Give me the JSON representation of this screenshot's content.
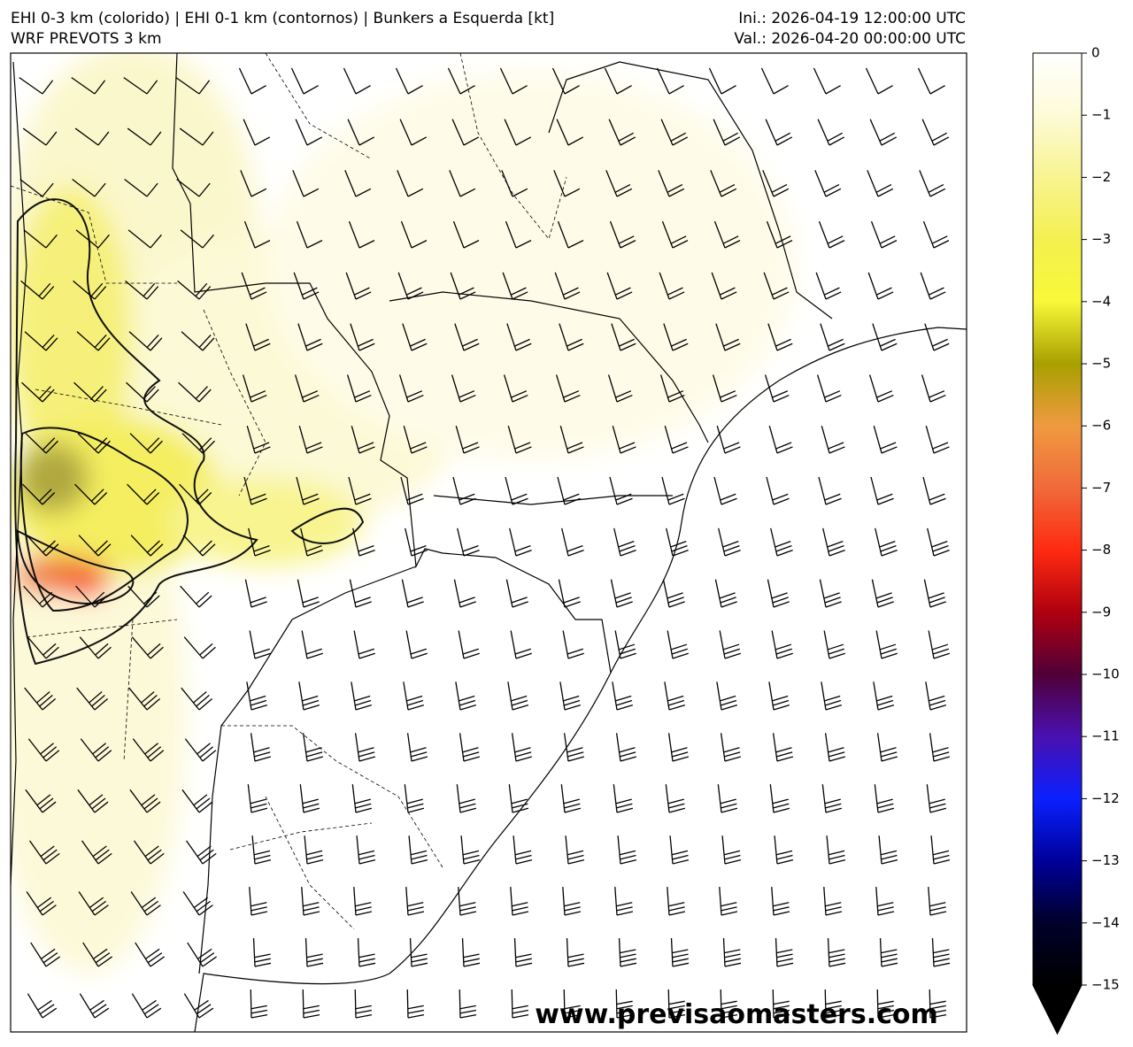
{
  "header": {
    "title": "EHI 0-3 km (colorido) | EHI 0-1 km (contornos) | Bunkers a Esquerda [kt]",
    "subtitle": "WRF PREVOTS 3 km",
    "init": "Ini.: 2026-04-19 12:00:00 UTC",
    "valid": "Val.: 2026-04-20 00:00:00 UTC"
  },
  "watermark": "www.previsaomasters.com",
  "colorbar": {
    "lim": [
      0,
      -15
    ],
    "ticks": [
      0,
      {
        "value": -1,
        "label": "−1"
      },
      {
        "value": -2,
        "label": "−2"
      },
      {
        "value": -3,
        "label": "−3"
      },
      {
        "value": -4,
        "label": "−4"
      },
      {
        "value": -5,
        "label": "−5"
      },
      {
        "value": -6,
        "label": "−6"
      },
      {
        "value": -7,
        "label": "−7"
      },
      {
        "value": -8,
        "label": "−8"
      },
      {
        "value": -9,
        "label": "−9"
      },
      {
        "value": -10,
        "label": "−10"
      },
      {
        "value": -11,
        "label": "−11"
      },
      {
        "value": -12,
        "label": "−12"
      },
      {
        "value": -13,
        "label": "−13"
      },
      {
        "value": -14,
        "label": "−14"
      },
      {
        "value": -15,
        "label": "−15"
      }
    ],
    "colors": [
      "#ffffff",
      "#fdfbd8",
      "#f8f490",
      "#f4f050",
      "#f8f838",
      "#a8a000",
      "#f09a40",
      "#f06a3a",
      "#ff2a10",
      "#b00010",
      "#500038",
      "#4a10b0",
      "#0a20ff",
      "#00009a",
      "#00002a",
      "#000000"
    ],
    "extend_color": "#000000"
  }
}
